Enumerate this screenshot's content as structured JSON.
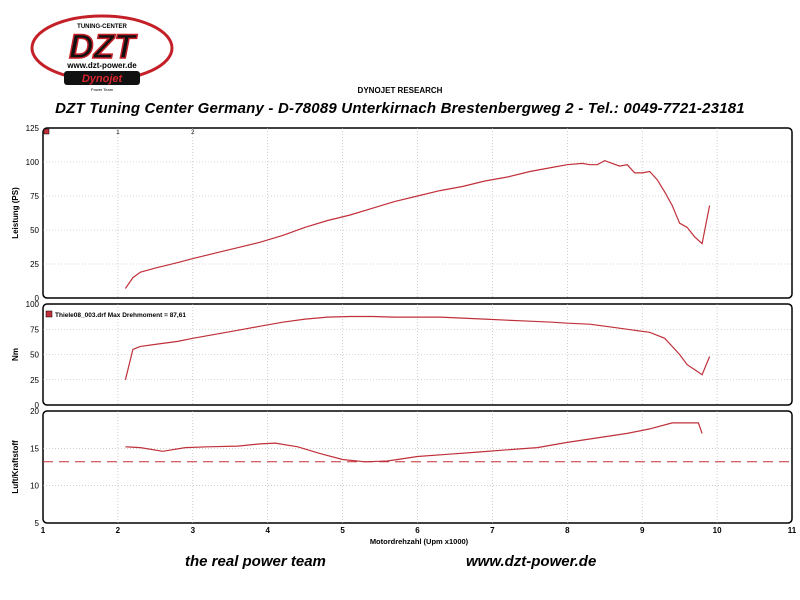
{
  "logo": {
    "brand_small": "TUNING-CENTER",
    "brand": "DZT",
    "url": "www.dzt-power.de",
    "partner": "Dynojet",
    "partner_small": "Power Team"
  },
  "header": {
    "report_title": "DYNOJET RESEARCH",
    "company": "DZT Tuning Center Germany - D-78089 Unterkirnach   Brestenbergweg 2 - Tel.: 0049-7721-23181"
  },
  "footer": {
    "slogan": "the real power team",
    "website": "www.dzt-power.de"
  },
  "colors": {
    "curve": "#c0303a",
    "grid": "#b0b0b0",
    "frame": "#000000"
  },
  "chart_data": [
    {
      "type": "line",
      "ylabel": "Leistung (PS)",
      "ylim": [
        0,
        125
      ],
      "yticks": [
        0,
        25,
        50,
        75,
        100,
        125
      ],
      "xlim": [
        1,
        11
      ],
      "grid": true,
      "markers": [
        "1",
        "2"
      ],
      "series": [
        {
          "x": [
            2.1,
            2.2,
            2.3,
            2.5,
            2.8,
            3.0,
            3.3,
            3.6,
            3.9,
            4.2,
            4.5,
            4.8,
            5.1,
            5.4,
            5.7,
            6.0,
            6.3,
            6.6,
            6.9,
            7.2,
            7.5,
            7.8,
            8.0,
            8.2,
            8.3,
            8.4,
            8.5,
            8.6,
            8.7,
            8.8,
            8.9,
            9.0,
            9.1,
            9.2,
            9.3,
            9.4,
            9.5,
            9.6,
            9.7,
            9.8,
            9.9
          ],
          "values": [
            7,
            15,
            19,
            22,
            26,
            29,
            33,
            37,
            41,
            46,
            52,
            57,
            61,
            66,
            71,
            75,
            79,
            82,
            86,
            89,
            93,
            96,
            98,
            99,
            98,
            98,
            101,
            99,
            97,
            98,
            92,
            92,
            93,
            87,
            78,
            68,
            55,
            52,
            45,
            40,
            68
          ]
        }
      ]
    },
    {
      "type": "line",
      "ylabel": "Nm",
      "ylim": [
        0,
        100
      ],
      "yticks": [
        0,
        25,
        50,
        75,
        100
      ],
      "xlim": [
        1,
        11
      ],
      "grid": true,
      "legend": "Thiele08_003.drf Max Drehmoment = 87,61",
      "legend_position": "top-left",
      "series": [
        {
          "name": "Thiele08_003.drf",
          "x": [
            2.1,
            2.2,
            2.3,
            2.5,
            2.8,
            3.0,
            3.3,
            3.6,
            3.9,
            4.2,
            4.5,
            4.8,
            5.1,
            5.4,
            5.7,
            6.0,
            6.3,
            6.6,
            6.9,
            7.2,
            7.5,
            7.8,
            8.0,
            8.3,
            8.6,
            8.9,
            9.1,
            9.3,
            9.4,
            9.5,
            9.6,
            9.7,
            9.8,
            9.9
          ],
          "values": [
            25,
            55,
            58,
            60,
            63,
            66,
            70,
            74,
            78,
            82,
            85,
            87,
            87.6,
            87.6,
            87,
            87,
            87,
            86,
            85,
            84,
            83,
            82,
            81,
            80,
            77,
            74,
            72,
            66,
            58,
            50,
            40,
            35,
            30,
            48
          ]
        }
      ]
    },
    {
      "type": "line",
      "ylabel": "Luft/Kraftstoff",
      "ylim": [
        5,
        20
      ],
      "yticks": [
        5,
        10,
        15,
        20
      ],
      "xlim": [
        1,
        11
      ],
      "xticks": [
        1,
        2,
        3,
        4,
        5,
        6,
        7,
        8,
        9,
        10,
        11
      ],
      "xlabel": "Motordrehzahl (Upm x1000)",
      "grid": true,
      "reference_line": 13.2,
      "series": [
        {
          "x": [
            2.1,
            2.3,
            2.6,
            2.9,
            3.2,
            3.6,
            3.9,
            4.1,
            4.4,
            4.7,
            5.0,
            5.3,
            5.6,
            6.0,
            6.4,
            6.8,
            7.2,
            7.6,
            8.0,
            8.4,
            8.8,
            9.1,
            9.4,
            9.6,
            9.75,
            9.8
          ],
          "values": [
            15.2,
            15.1,
            14.6,
            15.1,
            15.2,
            15.3,
            15.6,
            15.7,
            15.2,
            14.3,
            13.5,
            13.2,
            13.3,
            13.9,
            14.2,
            14.5,
            14.8,
            15.1,
            15.8,
            16.4,
            17.0,
            17.6,
            18.4,
            18.4,
            18.4,
            17.0
          ]
        }
      ]
    }
  ]
}
